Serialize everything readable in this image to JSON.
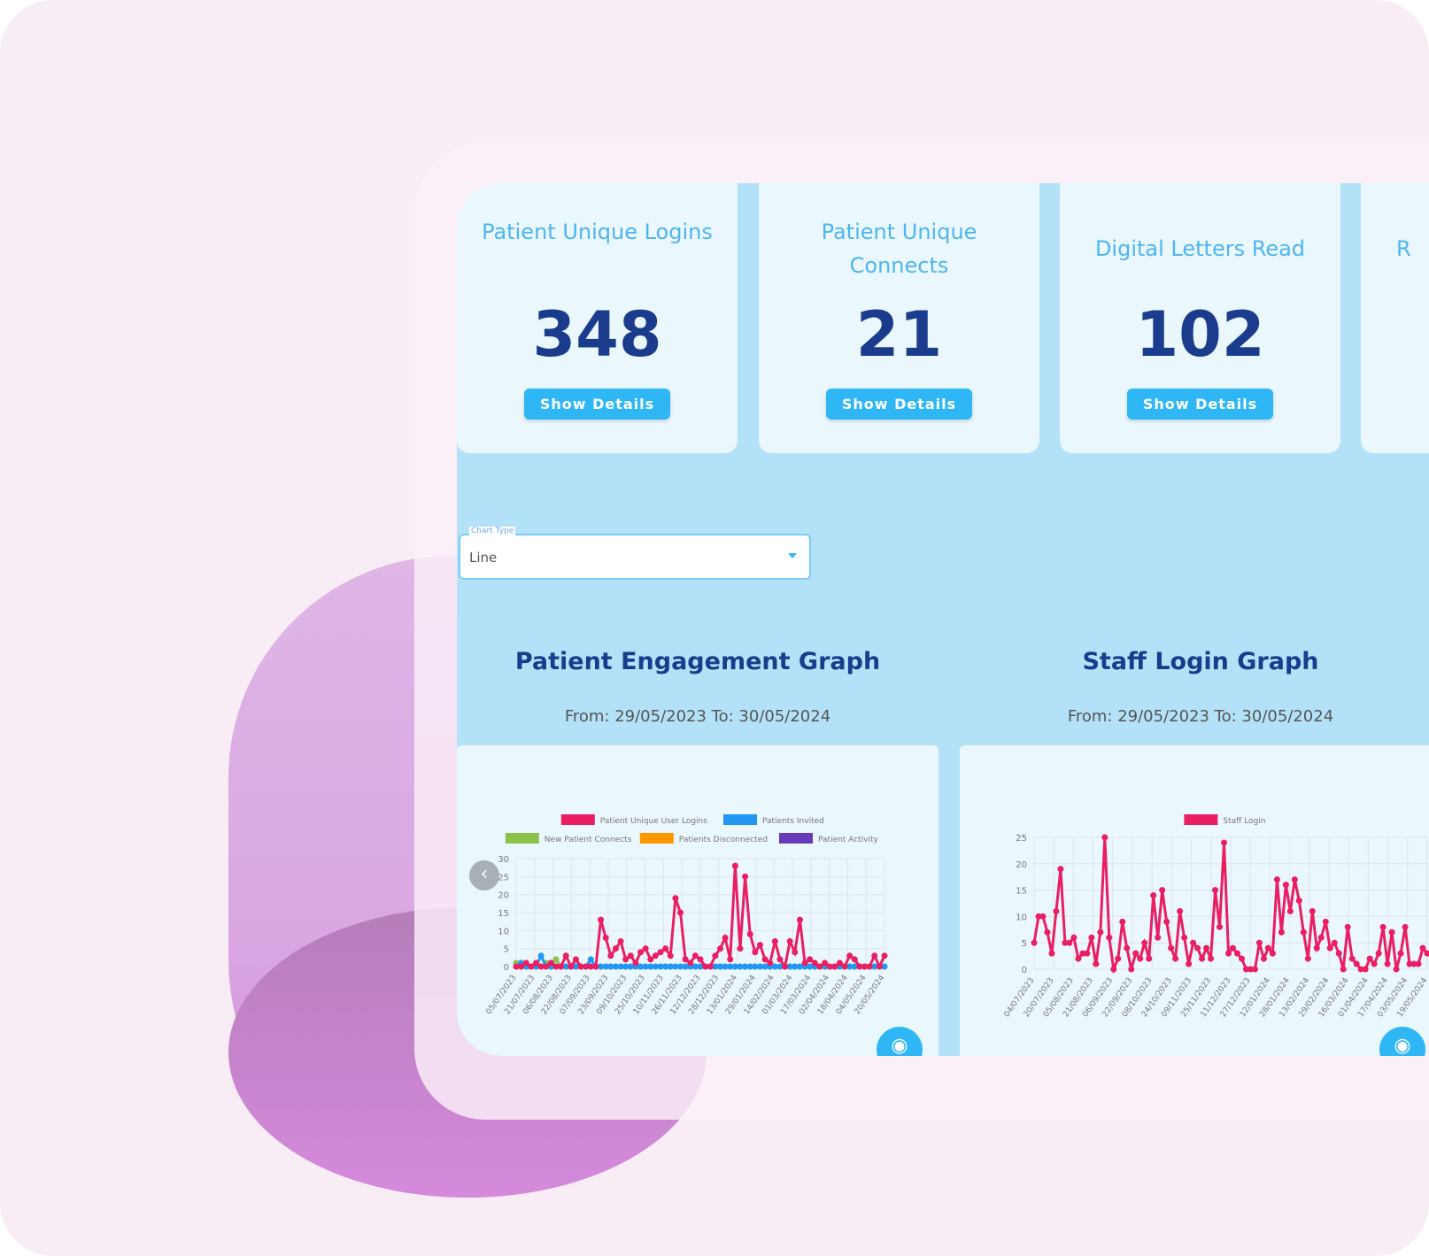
{
  "cards": [
    {
      "title": "Patient Unique Logins",
      "value": "348",
      "button": "Show Details"
    },
    {
      "title": "Patient Unique Connects",
      "value": "21",
      "button": "Show Details"
    },
    {
      "title": "Digital Letters Read",
      "value": "102",
      "button": "Show Details"
    },
    {
      "title": "R",
      "value": "",
      "button": ""
    }
  ],
  "chart_type": {
    "label": "Chart Type",
    "value": "Line"
  },
  "graphs": [
    {
      "title": "Patient Engagement Graph",
      "range": "From: 29/05/2023 To: 30/05/2024"
    },
    {
      "title": "Staff Login Graph",
      "range": "From: 29/05/2023 To: 30/05/2024"
    }
  ],
  "chart_data": [
    {
      "type": "line",
      "title": "Patient Engagement Graph",
      "ylim": [
        0,
        30
      ],
      "yticks": [
        0,
        5,
        10,
        15,
        20,
        25,
        30
      ],
      "xlabels": [
        "05/07/2023",
        "21/07/2023",
        "06/08/2023",
        "22/08/2023",
        "07/09/2023",
        "23/09/2023",
        "09/10/2023",
        "25/10/2023",
        "10/11/2023",
        "26/11/2023",
        "12/12/2023",
        "28/12/2023",
        "13/01/2024",
        "29/01/2024",
        "14/02/2024",
        "01/03/2024",
        "17/03/2024",
        "02/04/2024",
        "18/04/2024",
        "04/05/2024",
        "20/05/2024"
      ],
      "series": [
        {
          "name": "Patient Unique User Logins",
          "color": "#e91e63",
          "values": [
            0,
            0,
            1,
            0,
            1,
            0,
            0,
            1,
            0,
            0,
            3,
            0,
            2,
            0,
            0,
            0,
            0,
            13,
            8,
            3,
            5,
            7,
            2,
            3,
            1,
            4,
            5,
            2,
            3,
            4,
            5,
            3,
            19,
            15,
            2,
            1,
            3,
            2,
            0,
            0,
            3,
            5,
            8,
            2,
            28,
            5,
            25,
            9,
            4,
            6,
            2,
            1,
            7,
            2,
            0,
            7,
            4,
            13,
            1,
            2,
            1,
            0,
            1,
            0,
            0,
            1,
            0,
            3,
            2,
            0,
            0,
            0,
            3,
            0,
            3
          ]
        },
        {
          "name": "Patients Invited",
          "color": "#2196f3",
          "values": [
            0,
            1,
            0,
            0,
            0,
            3,
            0,
            0,
            0,
            0,
            0,
            0,
            0,
            0,
            0,
            2,
            0,
            0,
            0,
            0,
            0,
            0,
            0,
            0,
            0,
            0,
            0,
            0,
            0,
            0,
            0,
            0,
            0,
            0,
            0,
            0,
            0,
            0,
            0,
            0,
            0,
            0,
            0,
            0,
            0,
            0,
            0,
            0,
            0,
            0,
            0,
            0,
            0,
            0,
            0,
            0,
            0,
            0,
            0,
            0,
            0,
            0,
            0,
            0,
            0,
            0,
            0,
            0,
            0,
            0,
            0,
            0,
            0,
            0,
            0
          ]
        },
        {
          "name": "New Patient Connects",
          "color": "#8bc34a",
          "values": [
            1,
            0,
            0,
            0,
            0,
            0,
            1,
            0,
            2,
            0,
            0,
            0,
            0,
            0,
            0,
            0,
            0,
            0,
            0,
            0,
            0,
            0,
            0,
            0,
            0,
            0,
            0,
            0,
            0,
            0,
            0,
            0,
            0,
            0,
            0,
            0,
            0,
            0,
            0,
            0,
            0,
            0,
            0,
            0,
            0,
            0,
            0,
            0,
            0,
            0,
            0,
            0,
            0,
            0,
            0,
            0,
            0,
            0,
            0,
            0,
            0,
            0,
            0,
            0,
            0,
            0,
            0,
            0,
            0,
            0,
            0,
            0,
            0,
            0,
            0
          ]
        },
        {
          "name": "Patients Disconnected",
          "color": "#ff9800",
          "values": []
        },
        {
          "name": "Patient Activity",
          "color": "#673ab7",
          "values": []
        }
      ]
    },
    {
      "type": "line",
      "title": "Staff Login Graph",
      "ylim": [
        0,
        25
      ],
      "yticks": [
        0,
        5,
        10,
        15,
        20,
        25
      ],
      "xlabels": [
        "04/07/2023",
        "20/07/2023",
        "05/08/2023",
        "21/08/2023",
        "06/09/2023",
        "22/09/2023",
        "08/10/2023",
        "24/10/2023",
        "09/11/2023",
        "25/11/2023",
        "11/12/2023",
        "27/12/2023",
        "12/01/2024",
        "28/01/2024",
        "13/02/2024",
        "29/02/2024",
        "16/03/2024",
        "01/04/2024",
        "17/04/2024",
        "03/05/2024",
        "19/05/2024"
      ],
      "series": [
        {
          "name": "Staff Login",
          "color": "#e91e63",
          "values": [
            5,
            10,
            10,
            7,
            3,
            11,
            19,
            5,
            5,
            6,
            2,
            3,
            3,
            6,
            1,
            7,
            25,
            6,
            0,
            2,
            9,
            4,
            0,
            3,
            2,
            5,
            2,
            14,
            6,
            15,
            9,
            4,
            2,
            11,
            6,
            1,
            5,
            4,
            2,
            4,
            2,
            15,
            8,
            24,
            3,
            4,
            3,
            2,
            0,
            0,
            0,
            5,
            2,
            4,
            3,
            17,
            7,
            16,
            11,
            17,
            13,
            7,
            2,
            11,
            4,
            6,
            9,
            4,
            5,
            3,
            0,
            8,
            2,
            1,
            0,
            0,
            2,
            1,
            3,
            8,
            1,
            7,
            0,
            3,
            8,
            1,
            1,
            1,
            4,
            3
          ]
        }
      ]
    }
  ]
}
